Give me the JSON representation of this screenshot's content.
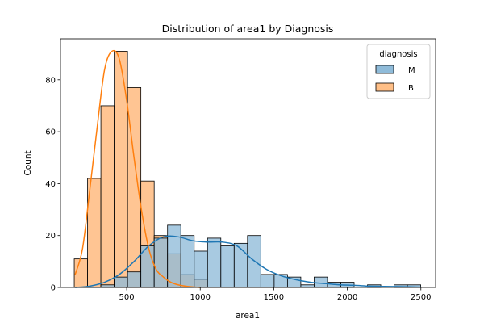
{
  "chart_data": {
    "type": "histogram",
    "title": "Distribution of area1 by Diagnosis",
    "xlabel": "area1",
    "ylabel": "Count",
    "xlim": [
      50,
      2600
    ],
    "ylim": [
      0,
      95.8
    ],
    "xticks": [
      500,
      1000,
      1500,
      2000,
      2500
    ],
    "yticks": [
      0,
      20,
      40,
      60,
      80
    ],
    "bin_start": 143.5,
    "bin_width": 90.6,
    "legend": {
      "title": "diagnosis",
      "placement": "top-right",
      "entries": [
        "M",
        "B"
      ]
    },
    "series": [
      {
        "name": "M",
        "color": "#1f77b4",
        "fill": "#8fbbd9",
        "counts": [
          0,
          0,
          1,
          4,
          6,
          16,
          19,
          24,
          20,
          14,
          19,
          16,
          17,
          20,
          5,
          5,
          4,
          1,
          4,
          2,
          2,
          0,
          1,
          0,
          1,
          1
        ],
        "kde_x": [
          150,
          250,
          350,
          450,
          550,
          650,
          750,
          850,
          950,
          1050,
          1150,
          1250,
          1350,
          1450,
          1550,
          1650,
          1750,
          1850,
          1950,
          2050,
          2150,
          2250,
          2350,
          2450,
          2500
        ],
        "kde_y": [
          0,
          0.5,
          2,
          5,
          10,
          16,
          19.5,
          19.5,
          18,
          17.5,
          17.5,
          16,
          11,
          7,
          4.5,
          3,
          2,
          1.5,
          1,
          0.8,
          0.5,
          0.4,
          0.3,
          0.2,
          0.1
        ]
      },
      {
        "name": "B",
        "color": "#ff7f0e",
        "fill": "#ffbf87",
        "counts": [
          11,
          42,
          70,
          91,
          77,
          41,
          20,
          13,
          5,
          3,
          0,
          0,
          0,
          0,
          0,
          0,
          0,
          0,
          0,
          0,
          0,
          0,
          0,
          0,
          0,
          0
        ],
        "kde_x": [
          150,
          200,
          250,
          300,
          350,
          400,
          450,
          500,
          550,
          600,
          650,
          700,
          750,
          800,
          850,
          900,
          950,
          1000
        ],
        "kde_y": [
          5,
          15,
          38,
          62,
          84,
          91,
          88,
          72,
          50,
          30,
          15,
          7,
          4,
          2,
          1,
          0.5,
          0.2,
          0
        ]
      }
    ]
  }
}
